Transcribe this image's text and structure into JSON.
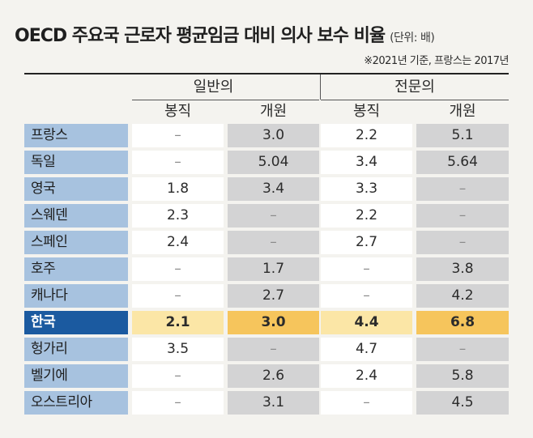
{
  "title": "OECD 주요국 근로자 평균임금 대비 의사 보수 비율",
  "unit": "(단위: 배)",
  "note": "※2021년 기준, 프랑스는 2017년",
  "groups": [
    "일반의",
    "전문의"
  ],
  "subheaders": [
    "봉직",
    "개원",
    "봉직",
    "개원"
  ],
  "rows": [
    {
      "country": "프랑스",
      "values": [
        "–",
        "3.0",
        "2.2",
        "5.1"
      ]
    },
    {
      "country": "독일",
      "values": [
        "–",
        "5.04",
        "3.4",
        "5.64"
      ]
    },
    {
      "country": "영국",
      "values": [
        "1.8",
        "3.4",
        "3.3",
        "–"
      ]
    },
    {
      "country": "스웨덴",
      "values": [
        "2.3",
        "–",
        "2.2",
        "–"
      ]
    },
    {
      "country": "스페인",
      "values": [
        "2.4",
        "–",
        "2.7",
        "–"
      ]
    },
    {
      "country": "호주",
      "values": [
        "–",
        "1.7",
        "–",
        "3.8"
      ]
    },
    {
      "country": "캐나다",
      "values": [
        "–",
        "2.7",
        "–",
        "4.2"
      ]
    },
    {
      "country": "한국",
      "values": [
        "2.1",
        "3.0",
        "4.4",
        "6.8"
      ],
      "highlight": true
    },
    {
      "country": "헝가리",
      "values": [
        "3.5",
        "–",
        "4.7",
        "–"
      ]
    },
    {
      "country": "벨기에",
      "values": [
        "–",
        "2.6",
        "2.4",
        "5.8"
      ]
    },
    {
      "country": "오스트리아",
      "values": [
        "–",
        "3.1",
        "–",
        "4.5"
      ]
    }
  ],
  "colors": {
    "name_cell": "#a7c2df",
    "highlight_name": "#1b5aa0",
    "highlight_light": "#fbe6a6",
    "highlight_dark": "#f6c55c",
    "grey_cell": "#d3d3d4"
  }
}
